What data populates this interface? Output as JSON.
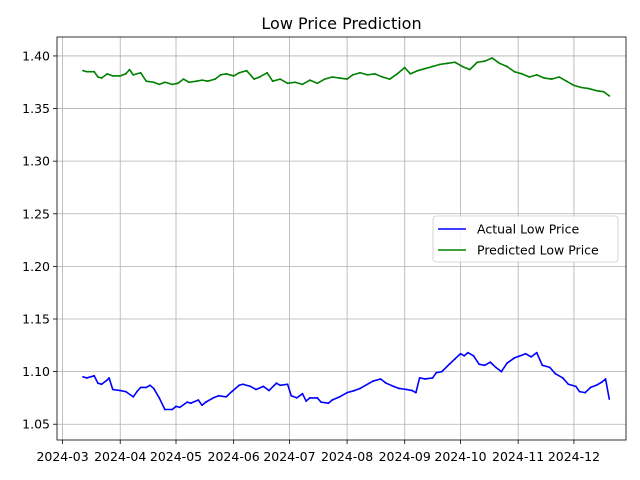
{
  "chart_data": {
    "type": "line",
    "title": "Low Price Prediction",
    "xlabel": "",
    "ylabel": "",
    "grid": true,
    "legend_position": "center-right",
    "x_ticks": [
      "2024-03",
      "2024-04",
      "2024-05",
      "2024-06",
      "2024-07",
      "2024-08",
      "2024-09",
      "2024-10",
      "2024-11",
      "2024-12"
    ],
    "y_ticks": [
      "1.05",
      "1.10",
      "1.15",
      "1.20",
      "1.25",
      "1.30",
      "1.35",
      "1.40"
    ],
    "xlim": [
      "2024-02-27",
      "2024-12-29"
    ],
    "ylim": [
      1.035,
      1.418
    ],
    "series": [
      {
        "name": "Actual Low Price",
        "color": "#0000ff",
        "points": [
          [
            "2024-03-12",
            1.095
          ],
          [
            "2024-03-14",
            1.094
          ],
          [
            "2024-03-18",
            1.096
          ],
          [
            "2024-03-20",
            1.089
          ],
          [
            "2024-03-22",
            1.088
          ],
          [
            "2024-03-25",
            1.092
          ],
          [
            "2024-03-26",
            1.094
          ],
          [
            "2024-03-28",
            1.083
          ],
          [
            "2024-04-01",
            1.082
          ],
          [
            "2024-04-04",
            1.081
          ],
          [
            "2024-04-08",
            1.076
          ],
          [
            "2024-04-10",
            1.081
          ],
          [
            "2024-04-12",
            1.085
          ],
          [
            "2024-04-15",
            1.085
          ],
          [
            "2024-04-17",
            1.087
          ],
          [
            "2024-04-19",
            1.084
          ],
          [
            "2024-04-22",
            1.075
          ],
          [
            "2024-04-25",
            1.064
          ],
          [
            "2024-04-29",
            1.064
          ],
          [
            "2024-05-01",
            1.067
          ],
          [
            "2024-05-03",
            1.066
          ],
          [
            "2024-05-07",
            1.071
          ],
          [
            "2024-05-09",
            1.07
          ],
          [
            "2024-05-13",
            1.073
          ],
          [
            "2024-05-15",
            1.068
          ],
          [
            "2024-05-17",
            1.071
          ],
          [
            "2024-05-21",
            1.075
          ],
          [
            "2024-05-24",
            1.077
          ],
          [
            "2024-05-28",
            1.076
          ],
          [
            "2024-05-31",
            1.081
          ],
          [
            "2024-06-04",
            1.087
          ],
          [
            "2024-06-06",
            1.088
          ],
          [
            "2024-06-10",
            1.086
          ],
          [
            "2024-06-13",
            1.083
          ],
          [
            "2024-06-17",
            1.086
          ],
          [
            "2024-06-20",
            1.082
          ],
          [
            "2024-06-24",
            1.089
          ],
          [
            "2024-06-26",
            1.087
          ],
          [
            "2024-06-30",
            1.088
          ],
          [
            "2024-07-02",
            1.077
          ],
          [
            "2024-07-05",
            1.075
          ],
          [
            "2024-07-08",
            1.079
          ],
          [
            "2024-07-10",
            1.072
          ],
          [
            "2024-07-12",
            1.075
          ],
          [
            "2024-07-16",
            1.075
          ],
          [
            "2024-07-18",
            1.071
          ],
          [
            "2024-07-22",
            1.07
          ],
          [
            "2024-07-24",
            1.073
          ],
          [
            "2024-07-28",
            1.076
          ],
          [
            "2024-08-01",
            1.08
          ],
          [
            "2024-08-05",
            1.082
          ],
          [
            "2024-08-08",
            1.084
          ],
          [
            "2024-08-12",
            1.088
          ],
          [
            "2024-08-15",
            1.091
          ],
          [
            "2024-08-19",
            1.093
          ],
          [
            "2024-08-22",
            1.089
          ],
          [
            "2024-08-26",
            1.086
          ],
          [
            "2024-08-29",
            1.084
          ],
          [
            "2024-09-02",
            1.083
          ],
          [
            "2024-09-05",
            1.082
          ],
          [
            "2024-09-07",
            1.08
          ],
          [
            "2024-09-09",
            1.094
          ],
          [
            "2024-09-12",
            1.093
          ],
          [
            "2024-09-16",
            1.094
          ],
          [
            "2024-09-18",
            1.099
          ],
          [
            "2024-09-21",
            1.1
          ],
          [
            "2024-09-25",
            1.107
          ],
          [
            "2024-09-28",
            1.112
          ],
          [
            "2024-10-01",
            1.117
          ],
          [
            "2024-10-03",
            1.115
          ],
          [
            "2024-10-05",
            1.118
          ],
          [
            "2024-10-08",
            1.115
          ],
          [
            "2024-10-11",
            1.107
          ],
          [
            "2024-10-14",
            1.106
          ],
          [
            "2024-10-17",
            1.109
          ],
          [
            "2024-10-20",
            1.104
          ],
          [
            "2024-10-23",
            1.1
          ],
          [
            "2024-10-26",
            1.108
          ],
          [
            "2024-10-30",
            1.113
          ],
          [
            "2024-11-02",
            1.115
          ],
          [
            "2024-11-05",
            1.117
          ],
          [
            "2024-11-08",
            1.114
          ],
          [
            "2024-11-11",
            1.118
          ],
          [
            "2024-11-14",
            1.106
          ],
          [
            "2024-11-18",
            1.104
          ],
          [
            "2024-11-21",
            1.098
          ],
          [
            "2024-11-25",
            1.094
          ],
          [
            "2024-11-28",
            1.088
          ],
          [
            "2024-12-02",
            1.086
          ],
          [
            "2024-12-04",
            1.081
          ],
          [
            "2024-12-07",
            1.08
          ],
          [
            "2024-12-10",
            1.085
          ],
          [
            "2024-12-13",
            1.087
          ],
          [
            "2024-12-16",
            1.09
          ],
          [
            "2024-12-18",
            1.093
          ],
          [
            "2024-12-20",
            1.074
          ]
        ]
      },
      {
        "name": "Predicted Low Price",
        "color": "#008000",
        "points": [
          [
            "2024-03-12",
            1.386
          ],
          [
            "2024-03-14",
            1.385
          ],
          [
            "2024-03-18",
            1.385
          ],
          [
            "2024-03-20",
            1.38
          ],
          [
            "2024-03-22",
            1.379
          ],
          [
            "2024-03-25",
            1.383
          ],
          [
            "2024-03-28",
            1.381
          ],
          [
            "2024-04-01",
            1.381
          ],
          [
            "2024-04-04",
            1.383
          ],
          [
            "2024-04-06",
            1.387
          ],
          [
            "2024-04-08",
            1.382
          ],
          [
            "2024-04-12",
            1.384
          ],
          [
            "2024-04-15",
            1.376
          ],
          [
            "2024-04-19",
            1.375
          ],
          [
            "2024-04-22",
            1.373
          ],
          [
            "2024-04-25",
            1.375
          ],
          [
            "2024-04-29",
            1.373
          ],
          [
            "2024-05-02",
            1.374
          ],
          [
            "2024-05-05",
            1.378
          ],
          [
            "2024-05-08",
            1.375
          ],
          [
            "2024-05-12",
            1.376
          ],
          [
            "2024-05-15",
            1.377
          ],
          [
            "2024-05-18",
            1.376
          ],
          [
            "2024-05-22",
            1.378
          ],
          [
            "2024-05-25",
            1.382
          ],
          [
            "2024-05-28",
            1.383
          ],
          [
            "2024-06-01",
            1.381
          ],
          [
            "2024-06-04",
            1.384
          ],
          [
            "2024-06-08",
            1.386
          ],
          [
            "2024-06-12",
            1.378
          ],
          [
            "2024-06-15",
            1.38
          ],
          [
            "2024-06-19",
            1.384
          ],
          [
            "2024-06-22",
            1.376
          ],
          [
            "2024-06-26",
            1.378
          ],
          [
            "2024-06-30",
            1.374
          ],
          [
            "2024-07-04",
            1.375
          ],
          [
            "2024-07-08",
            1.373
          ],
          [
            "2024-07-12",
            1.377
          ],
          [
            "2024-07-16",
            1.374
          ],
          [
            "2024-07-20",
            1.378
          ],
          [
            "2024-07-24",
            1.38
          ],
          [
            "2024-07-28",
            1.379
          ],
          [
            "2024-08-01",
            1.378
          ],
          [
            "2024-08-04",
            1.382
          ],
          [
            "2024-08-08",
            1.384
          ],
          [
            "2024-08-12",
            1.382
          ],
          [
            "2024-08-16",
            1.383
          ],
          [
            "2024-08-20",
            1.38
          ],
          [
            "2024-08-24",
            1.378
          ],
          [
            "2024-08-28",
            1.383
          ],
          [
            "2024-09-01",
            1.389
          ],
          [
            "2024-09-04",
            1.383
          ],
          [
            "2024-09-08",
            1.386
          ],
          [
            "2024-09-12",
            1.388
          ],
          [
            "2024-09-16",
            1.39
          ],
          [
            "2024-09-20",
            1.392
          ],
          [
            "2024-09-24",
            1.393
          ],
          [
            "2024-09-28",
            1.394
          ],
          [
            "2024-10-02",
            1.39
          ],
          [
            "2024-10-06",
            1.387
          ],
          [
            "2024-10-10",
            1.394
          ],
          [
            "2024-10-14",
            1.395
          ],
          [
            "2024-10-18",
            1.398
          ],
          [
            "2024-10-22",
            1.393
          ],
          [
            "2024-10-26",
            1.39
          ],
          [
            "2024-10-30",
            1.385
          ],
          [
            "2024-11-03",
            1.383
          ],
          [
            "2024-11-07",
            1.38
          ],
          [
            "2024-11-11",
            1.382
          ],
          [
            "2024-11-15",
            1.379
          ],
          [
            "2024-11-19",
            1.378
          ],
          [
            "2024-11-23",
            1.38
          ],
          [
            "2024-11-27",
            1.376
          ],
          [
            "2024-12-01",
            1.372
          ],
          [
            "2024-12-05",
            1.37
          ],
          [
            "2024-12-09",
            1.369
          ],
          [
            "2024-12-13",
            1.367
          ],
          [
            "2024-12-17",
            1.366
          ],
          [
            "2024-12-20",
            1.362
          ]
        ]
      }
    ]
  }
}
